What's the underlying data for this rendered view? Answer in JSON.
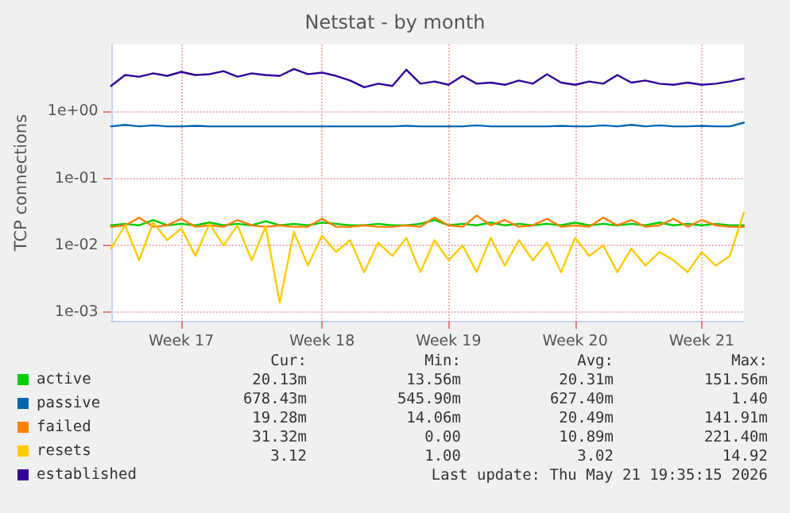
{
  "chart_data": {
    "type": "line",
    "title": "Netstat - by month",
    "ylabel": "TCP connections",
    "categories": [
      null,
      null,
      null,
      null,
      null,
      "Week 17",
      null,
      null,
      null,
      null,
      null,
      null,
      null,
      null,
      null,
      "Week 18",
      null,
      null,
      null,
      null,
      null,
      null,
      null,
      null,
      "Week 19",
      null,
      null,
      null,
      null,
      null,
      null,
      null,
      null,
      "Week 20",
      null,
      null,
      null,
      null,
      null,
      null,
      null,
      null,
      "Week 21",
      null,
      null,
      null
    ],
    "series": [
      {
        "name": "active",
        "color": "#00cc00",
        "values": [
          0.02,
          0.021,
          0.02,
          0.024,
          0.02,
          0.021,
          0.02,
          0.022,
          0.02,
          0.021,
          0.02,
          0.023,
          0.02,
          0.021,
          0.02,
          0.022,
          0.021,
          0.02,
          0.02,
          0.021,
          0.02,
          0.02,
          0.021,
          0.024,
          0.02,
          0.021,
          0.02,
          0.022,
          0.02,
          0.021,
          0.02,
          0.021,
          0.02,
          0.022,
          0.02,
          0.021,
          0.02,
          0.021,
          0.02,
          0.022,
          0.02,
          0.021,
          0.02,
          0.021,
          0.02,
          0.02
        ]
      },
      {
        "name": "passive",
        "color": "#0066b3",
        "values": [
          0.6,
          0.63,
          0.6,
          0.62,
          0.6,
          0.6,
          0.61,
          0.6,
          0.6,
          0.6,
          0.6,
          0.6,
          0.6,
          0.6,
          0.6,
          0.6,
          0.6,
          0.6,
          0.6,
          0.6,
          0.6,
          0.61,
          0.6,
          0.6,
          0.6,
          0.6,
          0.62,
          0.6,
          0.6,
          0.6,
          0.6,
          0.6,
          0.61,
          0.6,
          0.6,
          0.62,
          0.6,
          0.63,
          0.6,
          0.62,
          0.6,
          0.6,
          0.61,
          0.6,
          0.6,
          0.68
        ]
      },
      {
        "name": "failed",
        "color": "#ff8000",
        "values": [
          0.019,
          0.02,
          0.026,
          0.019,
          0.02,
          0.025,
          0.019,
          0.02,
          0.019,
          0.024,
          0.02,
          0.019,
          0.02,
          0.019,
          0.019,
          0.025,
          0.019,
          0.019,
          0.02,
          0.019,
          0.019,
          0.02,
          0.019,
          0.026,
          0.02,
          0.019,
          0.028,
          0.02,
          0.024,
          0.019,
          0.02,
          0.025,
          0.019,
          0.02,
          0.019,
          0.026,
          0.02,
          0.024,
          0.019,
          0.02,
          0.025,
          0.019,
          0.024,
          0.02,
          0.019,
          0.019
        ]
      },
      {
        "name": "resets",
        "color": "#ffcc00",
        "values": [
          0.009,
          0.02,
          0.006,
          0.022,
          0.012,
          0.018,
          0.007,
          0.021,
          0.01,
          0.02,
          0.006,
          0.019,
          0.0014,
          0.016,
          0.005,
          0.014,
          0.008,
          0.012,
          0.004,
          0.011,
          0.007,
          0.013,
          0.004,
          0.012,
          0.006,
          0.01,
          0.004,
          0.013,
          0.005,
          0.012,
          0.006,
          0.011,
          0.004,
          0.013,
          0.007,
          0.01,
          0.004,
          0.009,
          0.005,
          0.008,
          0.006,
          0.004,
          0.008,
          0.005,
          0.007,
          0.031
        ]
      },
      {
        "name": "established",
        "color": "#330099",
        "values": [
          2.4,
          3.5,
          3.3,
          3.7,
          3.4,
          3.9,
          3.5,
          3.6,
          4.0,
          3.3,
          3.7,
          3.5,
          3.4,
          4.3,
          3.6,
          3.8,
          3.4,
          2.9,
          2.3,
          2.6,
          2.4,
          4.2,
          2.6,
          2.8,
          2.5,
          3.4,
          2.6,
          2.7,
          2.5,
          2.9,
          2.6,
          3.6,
          2.7,
          2.5,
          2.8,
          2.6,
          3.5,
          2.7,
          2.9,
          2.6,
          2.5,
          2.7,
          2.5,
          2.6,
          2.8,
          3.1
        ]
      }
    ],
    "log": "y",
    "ylim": [
      0.00075,
      10
    ],
    "yticks": [
      {
        "value": 0.001,
        "label": "1e-03"
      },
      {
        "value": 0.01,
        "label": "1e-02"
      },
      {
        "value": 0.1,
        "label": "1e-01"
      },
      {
        "value": 1,
        "label": "1e+00"
      }
    ],
    "grid": true,
    "legend": "bottom left",
    "marker": "none",
    "line_style": "solid",
    "annotations": [
      "Cur:",
      "Min:",
      "Avg:",
      "Max:",
      "20.13m",
      "13.56m",
      "20.31m",
      "151.56m",
      "678.43m",
      "545.90m",
      "627.40m",
      "1.40",
      "19.28m",
      "14.06m",
      "20.49m",
      "141.91m",
      "31.32m",
      "0.00",
      "10.89m",
      "221.40m",
      "3.12",
      "1.00",
      "3.02",
      "14.92",
      "Last update: Thu May 21 19:35:15 2026"
    ]
  }
}
